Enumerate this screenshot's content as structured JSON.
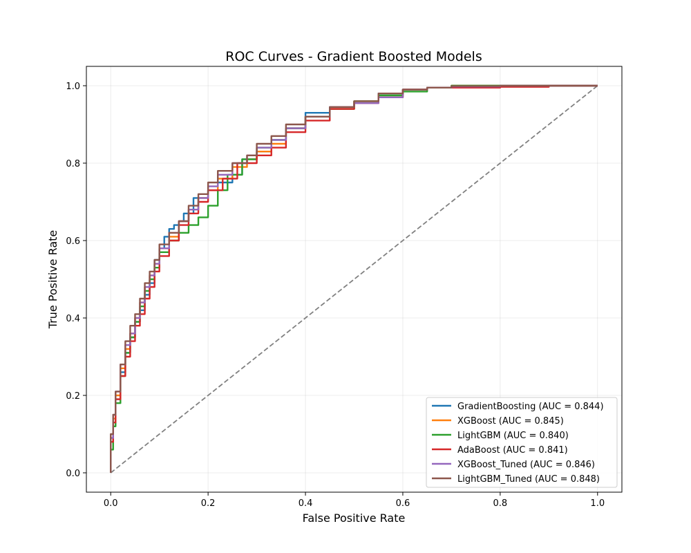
{
  "chart_data": {
    "type": "line",
    "title": "ROC Curves - Gradient Boosted Models",
    "xlabel": "False Positive Rate",
    "ylabel": "True Positive Rate",
    "xlim": [
      -0.05,
      1.05
    ],
    "ylim": [
      -0.05,
      1.05
    ],
    "xticks": [
      0.0,
      0.2,
      0.4,
      0.6,
      0.8,
      1.0
    ],
    "yticks": [
      0.0,
      0.2,
      0.4,
      0.6,
      0.8,
      1.0
    ],
    "xtick_labels": [
      "0.0",
      "0.2",
      "0.4",
      "0.6",
      "0.8",
      "1.0"
    ],
    "ytick_labels": [
      "0.0",
      "0.2",
      "0.4",
      "0.6",
      "0.8",
      "1.0"
    ],
    "grid": true,
    "legend_position": "lower-right",
    "diagonal": {
      "name": "Random",
      "color": "#808080",
      "points": [
        [
          0,
          0
        ],
        [
          1,
          1
        ]
      ]
    },
    "series": [
      {
        "name": "GradientBoosting",
        "label": "GradientBoosting (AUC = 0.844)",
        "color": "#1f77b4",
        "points": [
          [
            0,
            0
          ],
          [
            0.005,
            0.08
          ],
          [
            0.01,
            0.13
          ],
          [
            0.02,
            0.19
          ],
          [
            0.03,
            0.26
          ],
          [
            0.04,
            0.31
          ],
          [
            0.05,
            0.35
          ],
          [
            0.06,
            0.39
          ],
          [
            0.07,
            0.42
          ],
          [
            0.08,
            0.46
          ],
          [
            0.09,
            0.49
          ],
          [
            0.1,
            0.55
          ],
          [
            0.11,
            0.58
          ],
          [
            0.12,
            0.61
          ],
          [
            0.13,
            0.63
          ],
          [
            0.14,
            0.64
          ],
          [
            0.15,
            0.65
          ],
          [
            0.17,
            0.67
          ],
          [
            0.2,
            0.71
          ],
          [
            0.22,
            0.73
          ],
          [
            0.25,
            0.75
          ],
          [
            0.27,
            0.77
          ],
          [
            0.3,
            0.81
          ],
          [
            0.33,
            0.83
          ],
          [
            0.36,
            0.86
          ],
          [
            0.4,
            0.89
          ],
          [
            0.45,
            0.93
          ],
          [
            0.5,
            0.94
          ],
          [
            0.55,
            0.96
          ],
          [
            0.6,
            0.98
          ],
          [
            0.65,
            0.99
          ],
          [
            0.7,
            0.995
          ],
          [
            0.8,
            1.0
          ],
          [
            1.0,
            1.0
          ]
        ]
      },
      {
        "name": "XGBoost",
        "label": "XGBoost (AUC = 0.845)",
        "color": "#ff7f0e",
        "points": [
          [
            0,
            0
          ],
          [
            0.005,
            0.09
          ],
          [
            0.01,
            0.14
          ],
          [
            0.02,
            0.2
          ],
          [
            0.03,
            0.27
          ],
          [
            0.04,
            0.32
          ],
          [
            0.05,
            0.36
          ],
          [
            0.06,
            0.4
          ],
          [
            0.07,
            0.44
          ],
          [
            0.08,
            0.48
          ],
          [
            0.09,
            0.51
          ],
          [
            0.1,
            0.54
          ],
          [
            0.12,
            0.58
          ],
          [
            0.14,
            0.61
          ],
          [
            0.16,
            0.65
          ],
          [
            0.18,
            0.68
          ],
          [
            0.2,
            0.71
          ],
          [
            0.22,
            0.73
          ],
          [
            0.25,
            0.76
          ],
          [
            0.28,
            0.79
          ],
          [
            0.3,
            0.81
          ],
          [
            0.33,
            0.83
          ],
          [
            0.36,
            0.85
          ],
          [
            0.4,
            0.89
          ],
          [
            0.45,
            0.92
          ],
          [
            0.5,
            0.94
          ],
          [
            0.55,
            0.96
          ],
          [
            0.6,
            0.97
          ],
          [
            0.65,
            0.99
          ],
          [
            0.7,
            0.995
          ],
          [
            0.8,
            1.0
          ],
          [
            1.0,
            1.0
          ]
        ]
      },
      {
        "name": "LightGBM",
        "label": "LightGBM (AUC = 0.840)",
        "color": "#2ca02c",
        "points": [
          [
            0,
            0
          ],
          [
            0.005,
            0.06
          ],
          [
            0.01,
            0.12
          ],
          [
            0.02,
            0.18
          ],
          [
            0.03,
            0.25
          ],
          [
            0.04,
            0.31
          ],
          [
            0.05,
            0.35
          ],
          [
            0.06,
            0.39
          ],
          [
            0.07,
            0.43
          ],
          [
            0.08,
            0.47
          ],
          [
            0.09,
            0.5
          ],
          [
            0.1,
            0.53
          ],
          [
            0.12,
            0.57
          ],
          [
            0.14,
            0.6
          ],
          [
            0.16,
            0.62
          ],
          [
            0.18,
            0.64
          ],
          [
            0.2,
            0.66
          ],
          [
            0.22,
            0.69
          ],
          [
            0.24,
            0.73
          ],
          [
            0.27,
            0.77
          ],
          [
            0.3,
            0.81
          ],
          [
            0.33,
            0.84
          ],
          [
            0.36,
            0.86
          ],
          [
            0.4,
            0.89
          ],
          [
            0.45,
            0.92
          ],
          [
            0.5,
            0.94
          ],
          [
            0.55,
            0.96
          ],
          [
            0.6,
            0.975
          ],
          [
            0.65,
            0.985
          ],
          [
            0.7,
            0.995
          ],
          [
            0.8,
            1.0
          ],
          [
            1.0,
            1.0
          ]
        ]
      },
      {
        "name": "AdaBoost",
        "label": "AdaBoost (AUC = 0.841)",
        "color": "#d62728",
        "points": [
          [
            0,
            0
          ],
          [
            0.005,
            0.08
          ],
          [
            0.01,
            0.13
          ],
          [
            0.02,
            0.19
          ],
          [
            0.03,
            0.25
          ],
          [
            0.04,
            0.3
          ],
          [
            0.05,
            0.34
          ],
          [
            0.06,
            0.38
          ],
          [
            0.07,
            0.41
          ],
          [
            0.08,
            0.45
          ],
          [
            0.09,
            0.48
          ],
          [
            0.1,
            0.52
          ],
          [
            0.12,
            0.56
          ],
          [
            0.14,
            0.6
          ],
          [
            0.16,
            0.64
          ],
          [
            0.18,
            0.67
          ],
          [
            0.2,
            0.7
          ],
          [
            0.23,
            0.73
          ],
          [
            0.26,
            0.76
          ],
          [
            0.3,
            0.8
          ],
          [
            0.33,
            0.82
          ],
          [
            0.36,
            0.84
          ],
          [
            0.4,
            0.88
          ],
          [
            0.45,
            0.91
          ],
          [
            0.5,
            0.94
          ],
          [
            0.55,
            0.955
          ],
          [
            0.6,
            0.97
          ],
          [
            0.65,
            0.99
          ],
          [
            0.7,
            0.995
          ],
          [
            0.8,
            0.995
          ],
          [
            0.9,
            0.997
          ],
          [
            1.0,
            1.0
          ]
        ]
      },
      {
        "name": "XGBoost_Tuned",
        "label": "XGBoost_Tuned (AUC = 0.846)",
        "color": "#9467bd",
        "points": [
          [
            0,
            0
          ],
          [
            0.005,
            0.09
          ],
          [
            0.01,
            0.15
          ],
          [
            0.02,
            0.21
          ],
          [
            0.03,
            0.28
          ],
          [
            0.04,
            0.33
          ],
          [
            0.05,
            0.36
          ],
          [
            0.06,
            0.4
          ],
          [
            0.07,
            0.44
          ],
          [
            0.08,
            0.48
          ],
          [
            0.09,
            0.51
          ],
          [
            0.1,
            0.54
          ],
          [
            0.12,
            0.58
          ],
          [
            0.14,
            0.62
          ],
          [
            0.16,
            0.65
          ],
          [
            0.18,
            0.68
          ],
          [
            0.2,
            0.71
          ],
          [
            0.22,
            0.74
          ],
          [
            0.25,
            0.77
          ],
          [
            0.28,
            0.8
          ],
          [
            0.3,
            0.82
          ],
          [
            0.33,
            0.84
          ],
          [
            0.36,
            0.86
          ],
          [
            0.4,
            0.89
          ],
          [
            0.45,
            0.92
          ],
          [
            0.5,
            0.945
          ],
          [
            0.55,
            0.955
          ],
          [
            0.6,
            0.97
          ],
          [
            0.65,
            0.99
          ],
          [
            0.7,
            0.995
          ],
          [
            0.8,
            0.998
          ],
          [
            1.0,
            1.0
          ]
        ]
      },
      {
        "name": "LightGBM_Tuned",
        "label": "LightGBM_Tuned (AUC = 0.848)",
        "color": "#8c564b",
        "points": [
          [
            0,
            0
          ],
          [
            0.005,
            0.1
          ],
          [
            0.01,
            0.15
          ],
          [
            0.02,
            0.21
          ],
          [
            0.03,
            0.28
          ],
          [
            0.04,
            0.34
          ],
          [
            0.05,
            0.38
          ],
          [
            0.06,
            0.41
          ],
          [
            0.07,
            0.45
          ],
          [
            0.08,
            0.49
          ],
          [
            0.09,
            0.52
          ],
          [
            0.1,
            0.55
          ],
          [
            0.12,
            0.59
          ],
          [
            0.14,
            0.62
          ],
          [
            0.16,
            0.65
          ],
          [
            0.18,
            0.69
          ],
          [
            0.2,
            0.72
          ],
          [
            0.22,
            0.75
          ],
          [
            0.25,
            0.78
          ],
          [
            0.28,
            0.8
          ],
          [
            0.3,
            0.82
          ],
          [
            0.33,
            0.85
          ],
          [
            0.36,
            0.87
          ],
          [
            0.4,
            0.9
          ],
          [
            0.45,
            0.92
          ],
          [
            0.5,
            0.945
          ],
          [
            0.55,
            0.96
          ],
          [
            0.6,
            0.98
          ],
          [
            0.65,
            0.99
          ],
          [
            0.7,
            0.995
          ],
          [
            0.8,
            0.999
          ],
          [
            1.0,
            1.0
          ]
        ]
      }
    ]
  }
}
